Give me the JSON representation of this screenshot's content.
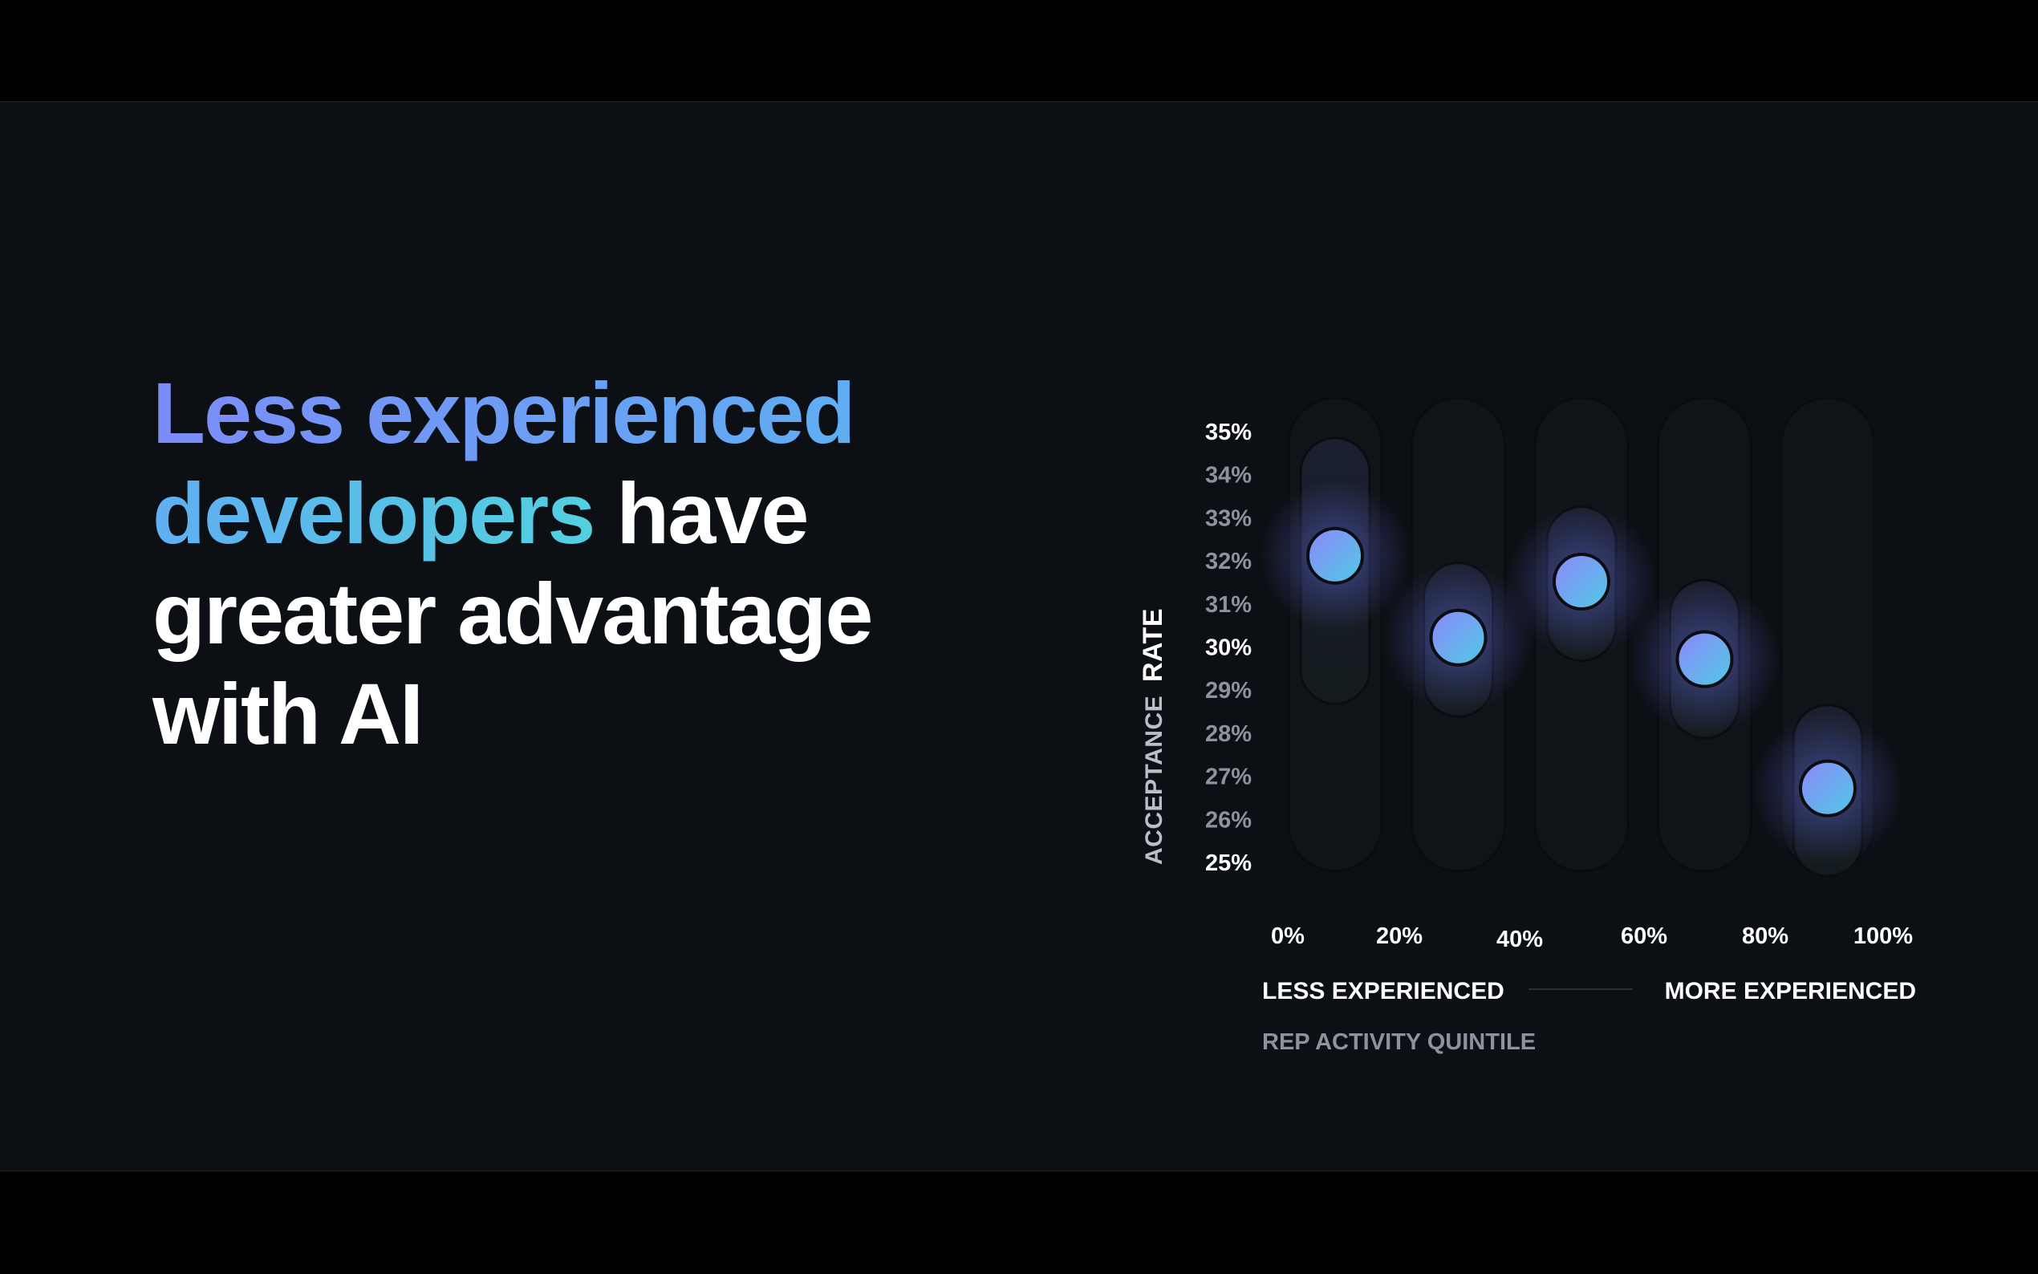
{
  "headline": {
    "highlight": "Less experienced developers",
    "rest": "have greater advantage with AI"
  },
  "colors": {
    "background": "#0c0f14",
    "accent_start": "#7c8cf8",
    "accent_end": "#52d0e0",
    "track": "#111418",
    "tick_major": "#ffffff",
    "tick_minor": "#8c939e"
  },
  "chart_data": {
    "type": "scatter",
    "ylabel_parts": [
      "ACCEPTANCE",
      "RATE"
    ],
    "ylim": [
      25,
      35
    ],
    "y_ticks": [
      "35%",
      "34%",
      "33%",
      "32%",
      "31%",
      "30%",
      "29%",
      "28%",
      "27%",
      "26%",
      "25%"
    ],
    "y_ticks_highlight": [
      "35%",
      "30%",
      "25%"
    ],
    "x_ticks": [
      "0%",
      "20%",
      "40%",
      "60%",
      "80%",
      "100%"
    ],
    "x_caption_left": "LESS EXPERIENCED",
    "x_caption_right": "MORE EXPERIENCED",
    "xlabel": "REP ACTIVITY QUINTILE",
    "quintiles": [
      {
        "value": 32.1,
        "range": [
          29.0,
          34.5
        ]
      },
      {
        "value": 30.2,
        "range": [
          28.7,
          31.6
        ]
      },
      {
        "value": 31.5,
        "range": [
          30.0,
          32.9
        ]
      },
      {
        "value": 29.7,
        "range": [
          28.2,
          31.2
        ]
      },
      {
        "value": 26.7,
        "range": [
          25.0,
          28.3
        ]
      }
    ]
  }
}
